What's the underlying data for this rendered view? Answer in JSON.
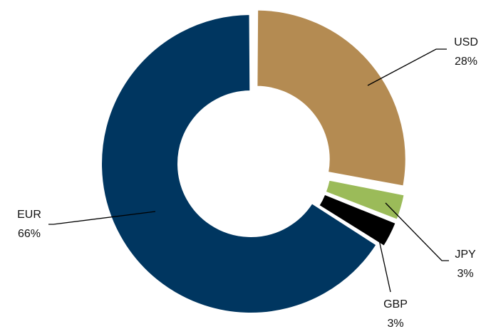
{
  "chart_data": {
    "type": "pie",
    "variant": "donut",
    "slices": [
      {
        "name": "USD",
        "value": 28,
        "label": "28%",
        "color": "#b48b52"
      },
      {
        "name": "JPY",
        "value": 3,
        "label": "3%",
        "color": "#9bbb59"
      },
      {
        "name": "GBP",
        "value": 3,
        "label": "3%",
        "color": "#000000"
      },
      {
        "name": "EUR",
        "value": 66,
        "label": "66%",
        "color": "#003660"
      }
    ],
    "title": "",
    "legend": "none"
  }
}
